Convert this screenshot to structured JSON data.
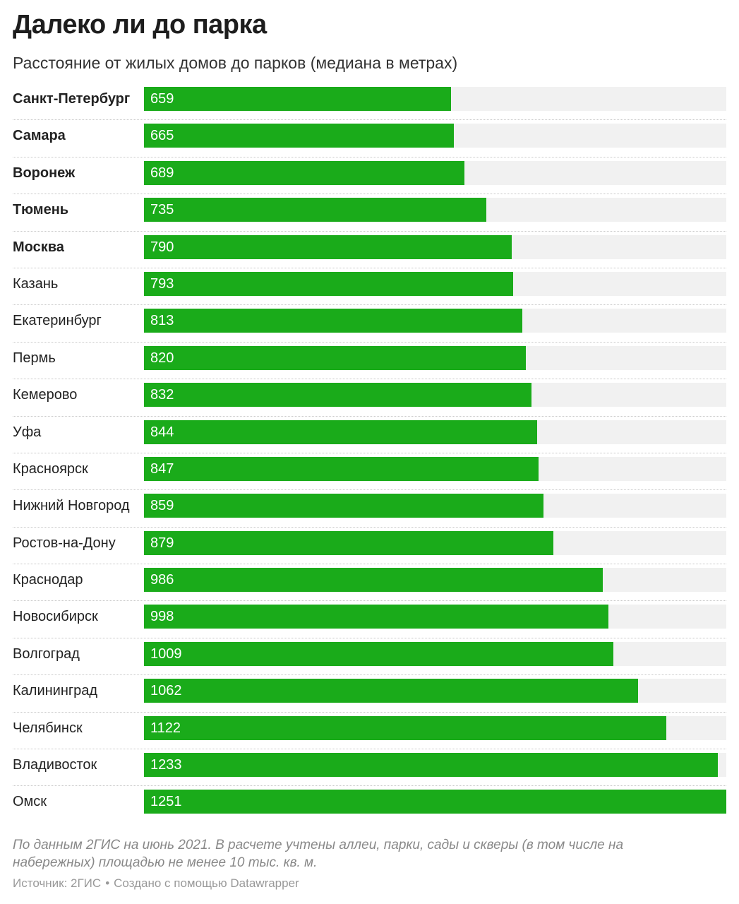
{
  "header": {
    "title": "Далеко ли до парка",
    "subtitle": "Расстояние от жилых домов до парков (медиана в метрах)"
  },
  "footer": {
    "note": "По данным 2ГИС на июнь 2021. В расчете учтены аллеи, парки, сады и скверы (в том числе на набережных) площадью не менее 10 тыс. кв. м.",
    "source": "Источник: 2ГИС",
    "dot": "•",
    "credit": "Создано с помощью Datawrapper"
  },
  "colors": {
    "bar": "#1aab1a",
    "track": "#f1f1f1"
  },
  "chart_data": {
    "type": "bar",
    "orientation": "horizontal",
    "title": "Далеко ли до парка",
    "subtitle": "Расстояние от жилых домов до парков (медиана в метрах)",
    "xlim": [
      0,
      1251
    ],
    "grid": false,
    "categories": [
      "Санкт-Петербург",
      "Самара",
      "Воронеж",
      "Тюмень",
      "Москва",
      "Казань",
      "Екатеринбург",
      "Пермь",
      "Кемерово",
      "Уфа",
      "Красноярск",
      "Нижний Новгород",
      "Ростов-на-Дону",
      "Краснодар",
      "Новосибирск",
      "Волгоград",
      "Калининград",
      "Челябинск",
      "Владивосток",
      "Омск"
    ],
    "values": [
      659,
      665,
      689,
      735,
      790,
      793,
      813,
      820,
      832,
      844,
      847,
      859,
      879,
      986,
      998,
      1009,
      1062,
      1122,
      1233,
      1251
    ],
    "labels": [
      "659",
      "665",
      "689",
      "735",
      "790",
      "793",
      "813",
      "820",
      "832",
      "844",
      "847",
      "859",
      "879",
      "986",
      "998",
      "1009",
      "1062",
      "1122",
      "1233",
      "1251"
    ],
    "bold_categories": [
      "Санкт-Петербург",
      "Самара",
      "Воронеж",
      "Тюмень",
      "Москва"
    ]
  }
}
